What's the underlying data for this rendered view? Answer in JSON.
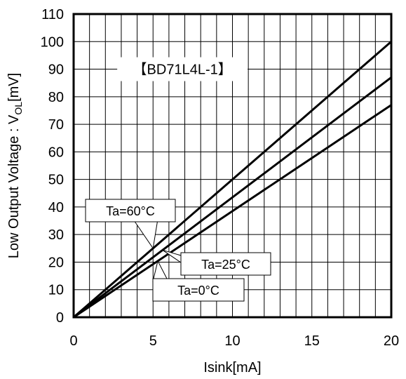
{
  "chart_data": {
    "type": "line",
    "title": "【BD71L4L-1】",
    "xlabel": "Isink[mA]",
    "ylabel": "Low Output Voltage : V",
    "ylabel_subscript": "OL",
    "ylabel_unit": "[mV]",
    "xlim": [
      0,
      20
    ],
    "ylim": [
      0,
      110
    ],
    "xticks": [
      "0",
      "5",
      "10",
      "15",
      "20"
    ],
    "yticks": [
      "0",
      "10",
      "20",
      "30",
      "40",
      "50",
      "60",
      "70",
      "80",
      "90",
      "100",
      "110"
    ],
    "grid": true,
    "series": [
      {
        "name": "Ta=60°C",
        "x": [
          0,
          20
        ],
        "y": [
          0,
          100
        ]
      },
      {
        "name": "Ta=25°C",
        "x": [
          0,
          20
        ],
        "y": [
          0,
          87
        ]
      },
      {
        "name": "Ta=0°C",
        "x": [
          0,
          20
        ],
        "y": [
          0,
          77
        ]
      }
    ],
    "annotations": [
      "Ta=60°C",
      "Ta=25°C",
      "Ta=0°C"
    ]
  }
}
